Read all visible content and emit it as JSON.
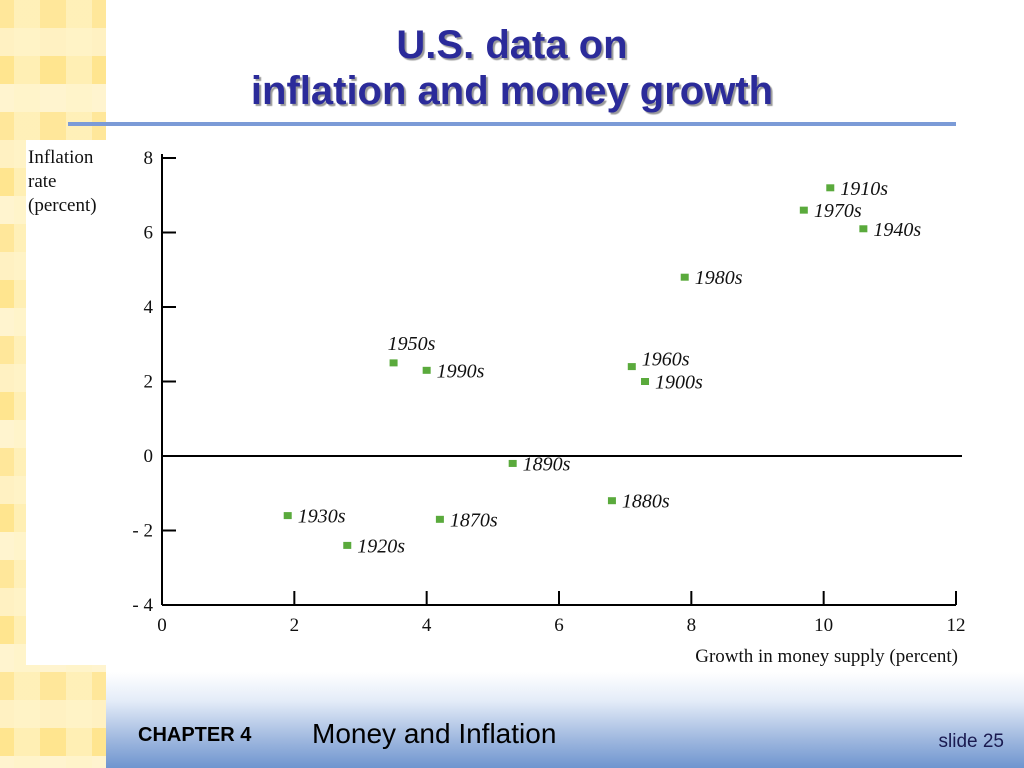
{
  "slide": {
    "title_lines": [
      "U.S. data on",
      "inflation and money growth"
    ],
    "chapter_label": "CHAPTER 4",
    "chapter_title": "Money and Inflation",
    "slide_label": "slide 25"
  },
  "colors": {
    "title": "#2b2b9a",
    "title_rule": "#7b9bd7",
    "marker": "#5aaa3c",
    "strip": "#ffe89f"
  },
  "chart_data": {
    "type": "scatter",
    "title": "",
    "ylabel_lines": [
      "Inflation",
      "rate",
      "(percent)"
    ],
    "xlabel": "Growth in money supply (percent)",
    "xlim": [
      0,
      12
    ],
    "ylim": [
      -4,
      8
    ],
    "xticks": [
      "0",
      "2",
      "4",
      "6",
      "8",
      "10",
      "12"
    ],
    "yticks": [
      "- 4",
      "- 2",
      "0",
      "2",
      "4",
      "6",
      "8"
    ],
    "grid": false,
    "points": [
      {
        "label": "1870s",
        "x": 4.2,
        "y": -1.7
      },
      {
        "label": "1880s",
        "x": 6.8,
        "y": -1.2
      },
      {
        "label": "1890s",
        "x": 5.3,
        "y": -0.2
      },
      {
        "label": "1900s",
        "x": 7.3,
        "y": 2.0
      },
      {
        "label": "1910s",
        "x": 10.1,
        "y": 7.2
      },
      {
        "label": "1920s",
        "x": 2.8,
        "y": -2.4
      },
      {
        "label": "1930s",
        "x": 1.9,
        "y": -1.6
      },
      {
        "label": "1940s",
        "x": 10.6,
        "y": 6.1
      },
      {
        "label": "1950s",
        "x": 3.5,
        "y": 2.5
      },
      {
        "label": "1960s",
        "x": 7.1,
        "y": 2.4
      },
      {
        "label": "1970s",
        "x": 9.7,
        "y": 6.6
      },
      {
        "label": "1980s",
        "x": 7.9,
        "y": 4.8
      },
      {
        "label": "1990s",
        "x": 4.0,
        "y": 2.3
      }
    ]
  }
}
